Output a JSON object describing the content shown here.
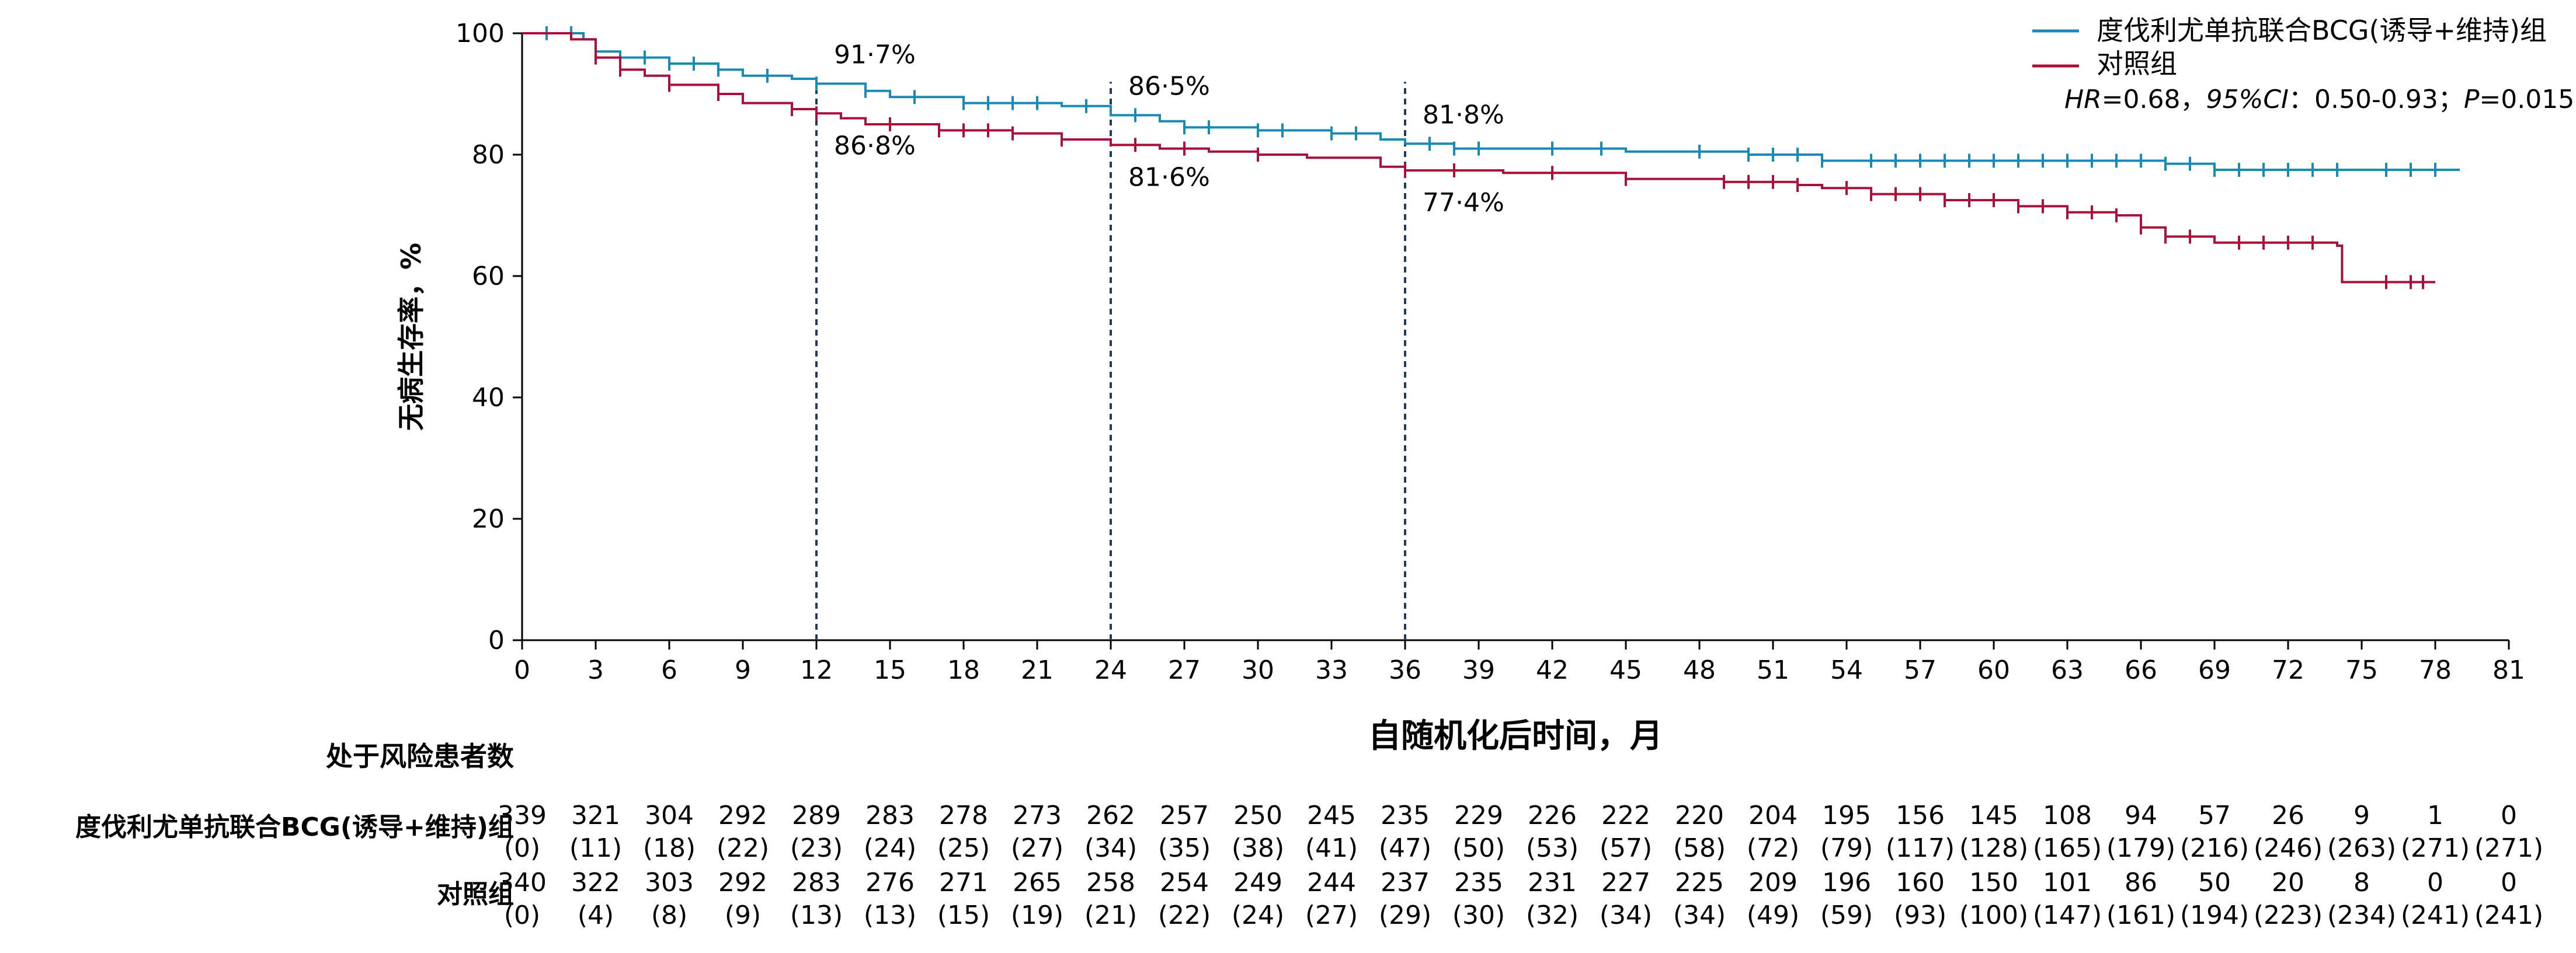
{
  "chart_data": {
    "type": "line",
    "subtype": "kaplan-meier",
    "xlabel": "自随机化后时间，月",
    "ylabel": "无病生存率，%",
    "xlim": [
      0,
      81
    ],
    "ylim": [
      0,
      100
    ],
    "xticks": [
      0,
      3,
      6,
      9,
      12,
      15,
      18,
      21,
      24,
      27,
      30,
      33,
      36,
      39,
      42,
      45,
      48,
      51,
      54,
      57,
      60,
      63,
      66,
      69,
      72,
      75,
      78,
      81
    ],
    "yticks": [
      0,
      20,
      40,
      60,
      80,
      100
    ],
    "legend_position": "top-right",
    "stats": "HR=0.68，95%CI：0.50-0.93；P=0.015",
    "stats_parts": {
      "hr_label": "HR",
      "hr": "=0.68，",
      "ci_label": "95%CI",
      "ci": "：0.50-0.93；",
      "p_label": "P",
      "p": "=0.015"
    },
    "reference_lines": [
      12,
      24,
      36
    ],
    "series": [
      {
        "name": "度伐利尤单抗联合BCG(诱导+维持)组",
        "color": "#1a8ab4",
        "steps": [
          [
            0,
            100
          ],
          [
            2.5,
            99
          ],
          [
            3,
            97
          ],
          [
            4,
            96
          ],
          [
            6,
            95
          ],
          [
            8,
            94
          ],
          [
            9,
            93
          ],
          [
            11,
            92.5
          ],
          [
            12,
            91.7
          ],
          [
            14,
            90.5
          ],
          [
            15,
            89.5
          ],
          [
            18,
            88.5
          ],
          [
            22,
            88
          ],
          [
            24,
            86.5
          ],
          [
            26,
            85.5
          ],
          [
            27,
            84.5
          ],
          [
            30,
            84
          ],
          [
            33,
            83.5
          ],
          [
            35,
            82.5
          ],
          [
            36,
            81.8
          ],
          [
            38,
            81
          ],
          [
            45,
            80.5
          ],
          [
            50,
            80
          ],
          [
            53,
            79
          ],
          [
            67,
            78.5
          ],
          [
            69,
            77.5
          ],
          [
            79,
            77.5
          ]
        ],
        "censor": [
          1,
          2,
          3,
          4,
          5,
          6,
          7,
          8,
          10,
          12,
          14,
          16,
          18,
          19,
          20,
          21,
          23,
          25,
          27,
          28,
          30,
          31,
          33,
          34,
          37,
          38,
          39,
          42,
          44,
          48,
          50,
          51,
          52,
          53,
          55,
          56,
          57,
          58,
          59,
          60,
          61,
          62,
          63,
          64,
          65,
          66,
          67,
          68,
          69,
          70,
          71,
          72,
          73,
          74,
          76,
          77,
          78
        ],
        "annotations": [
          {
            "x": 12,
            "label": "91·7%"
          },
          {
            "x": 24,
            "label": "86·5%"
          },
          {
            "x": 36,
            "label": "81·8%"
          }
        ]
      },
      {
        "name": "对照组",
        "color": "#a8123a",
        "steps": [
          [
            0,
            100
          ],
          [
            2,
            99
          ],
          [
            3,
            96
          ],
          [
            4,
            94
          ],
          [
            5,
            93
          ],
          [
            6,
            91.5
          ],
          [
            8,
            90
          ],
          [
            9,
            88.5
          ],
          [
            11,
            87.5
          ],
          [
            12,
            86.8
          ],
          [
            13,
            86
          ],
          [
            14,
            85
          ],
          [
            17,
            84
          ],
          [
            20,
            83.5
          ],
          [
            22,
            82.5
          ],
          [
            24,
            81.6
          ],
          [
            26,
            81
          ],
          [
            28,
            80.5
          ],
          [
            30,
            80
          ],
          [
            32,
            79.5
          ],
          [
            35,
            78
          ],
          [
            36,
            77.4
          ],
          [
            40,
            77
          ],
          [
            45,
            76
          ],
          [
            49,
            75.5
          ],
          [
            52,
            75
          ],
          [
            53,
            74.5
          ],
          [
            55,
            73.5
          ],
          [
            58,
            72.5
          ],
          [
            61,
            71.5
          ],
          [
            63,
            70.5
          ],
          [
            65,
            70
          ],
          [
            66,
            68
          ],
          [
            67,
            66.5
          ],
          [
            69,
            65.5
          ],
          [
            74,
            65
          ],
          [
            74.2,
            59
          ],
          [
            78,
            59
          ]
        ],
        "censor": [
          3,
          4,
          6,
          8,
          11,
          12,
          15,
          17,
          18,
          19,
          20,
          22,
          25,
          27,
          30,
          36,
          38,
          42,
          45,
          49,
          50,
          51,
          52,
          54,
          55,
          56,
          57,
          58,
          59,
          60,
          61,
          62,
          63,
          64,
          65,
          66,
          67,
          68,
          70,
          71,
          72,
          73,
          76,
          77,
          77.5
        ],
        "annotations": [
          {
            "x": 12,
            "label": "86·8%"
          },
          {
            "x": 24,
            "label": "81·6%"
          },
          {
            "x": 36,
            "label": "77·4%"
          }
        ]
      }
    ]
  },
  "risk_table": {
    "title": "处于风险患者数",
    "rows": [
      {
        "label": "度伐利尤单抗联合BCG(诱导+维持)组",
        "n": [
          "339",
          "321",
          "304",
          "292",
          "289",
          "283",
          "278",
          "273",
          "262",
          "257",
          "250",
          "245",
          "235",
          "229",
          "226",
          "222",
          "220",
          "204",
          "195",
          "156",
          "145",
          "108",
          "94",
          "57",
          "26",
          "9",
          "1",
          "0"
        ],
        "c": [
          "(0)",
          "(11)",
          "(18)",
          "(22)",
          "(23)",
          "(24)",
          "(25)",
          "(27)",
          "(34)",
          "(35)",
          "(38)",
          "(41)",
          "(47)",
          "(50)",
          "(53)",
          "(57)",
          "(58)",
          "(72)",
          "(79)",
          "(117)",
          "(128)",
          "(165)",
          "(179)",
          "(216)",
          "(246)",
          "(263)",
          "(271)",
          "(271)"
        ]
      },
      {
        "label": "对照组",
        "n": [
          "340",
          "322",
          "303",
          "292",
          "283",
          "276",
          "271",
          "265",
          "258",
          "254",
          "249",
          "244",
          "237",
          "235",
          "231",
          "227",
          "225",
          "209",
          "196",
          "160",
          "150",
          "101",
          "86",
          "50",
          "20",
          "8",
          "0",
          "0"
        ],
        "c": [
          "(0)",
          "(4)",
          "(8)",
          "(9)",
          "(13)",
          "(13)",
          "(15)",
          "(19)",
          "(21)",
          "(22)",
          "(24)",
          "(27)",
          "(29)",
          "(30)",
          "(32)",
          "(34)",
          "(34)",
          "(49)",
          "(59)",
          "(93)",
          "(100)",
          "(147)",
          "(161)",
          "(194)",
          "(223)",
          "(234)",
          "(241)",
          "(241)"
        ]
      }
    ]
  }
}
